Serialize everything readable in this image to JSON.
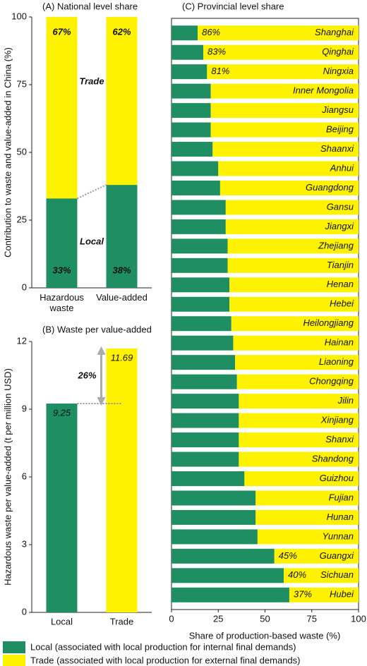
{
  "chart_data": [
    {
      "type": "stacked-bar",
      "title": "(A) National level share",
      "ylabel": "Contribution to waste and value-added in China (%)",
      "categories": [
        "Hazardous waste",
        "Value-added"
      ],
      "series": [
        {
          "name": "Local",
          "color": "#1f8f63",
          "values": [
            33,
            38
          ],
          "value_labels": [
            "33%",
            "38%"
          ]
        },
        {
          "name": "Trade",
          "color": "#fff200",
          "values": [
            67,
            62
          ],
          "value_labels": [
            "67%",
            "62%"
          ]
        }
      ],
      "ylim": [
        0,
        100
      ],
      "yticks": [
        0,
        25,
        50,
        75,
        100
      ]
    },
    {
      "type": "bar",
      "title": "(B) Waste per value-added",
      "ylabel": "Hazardous waste per value-added (t per million USD)",
      "categories": [
        "Local",
        "Trade"
      ],
      "values": [
        9.25,
        11.69
      ],
      "colors": [
        "#1f8f63",
        "#fff200"
      ],
      "annotation": "26%",
      "ylim": [
        0,
        12
      ],
      "yticks": [
        0,
        3,
        6,
        9,
        12
      ]
    },
    {
      "type": "horizontal-stacked-bar",
      "title": "(C) Provincial level share",
      "xlabel": "Share of production-based waste (%)",
      "categories": [
        "Shanghai",
        "Qinghai",
        "Ningxia",
        "Inner Mongolia",
        "Jiangsu",
        "Beijing",
        "Shaanxi",
        "Anhui",
        "Guangdong",
        "Gansu",
        "Jiangxi",
        "Zhejiang",
        "Tianjin",
        "Henan",
        "Hebei",
        "Heilongjiang",
        "Hainan",
        "Liaoning",
        "Chongqing",
        "Jilin",
        "Xinjiang",
        "Shanxi",
        "Shandong",
        "Guizhou",
        "Fujian",
        "Hunan",
        "Yunnan",
        "Guangxi",
        "Sichuan",
        "Hubei"
      ],
      "series": [
        {
          "name": "Local (associated with local production for internal final demands)",
          "color": "#1f8f63",
          "values": [
            14,
            17,
            19,
            21,
            21,
            21,
            22,
            25,
            26,
            29,
            29,
            30,
            30,
            31,
            31,
            32,
            33,
            34,
            35,
            36,
            36,
            36,
            36,
            39,
            45,
            45,
            46,
            55,
            60,
            63
          ]
        },
        {
          "name": "Trade (associated with local production for external final demands)",
          "color": "#fff200",
          "values": [
            86,
            83,
            81,
            79,
            79,
            79,
            78,
            75,
            74,
            71,
            71,
            70,
            70,
            69,
            69,
            68,
            67,
            66,
            65,
            64,
            64,
            64,
            64,
            61,
            55,
            55,
            54,
            45,
            40,
            37
          ],
          "value_labels": [
            "86%",
            "83%",
            "81%",
            null,
            null,
            null,
            null,
            null,
            null,
            null,
            null,
            null,
            null,
            null,
            null,
            null,
            null,
            null,
            null,
            null,
            null,
            null,
            null,
            null,
            null,
            null,
            null,
            "45%",
            "40%",
            "37%"
          ]
        }
      ],
      "xlim": [
        0,
        100
      ],
      "xticks": [
        0,
        25,
        50,
        75,
        100
      ]
    }
  ]
}
